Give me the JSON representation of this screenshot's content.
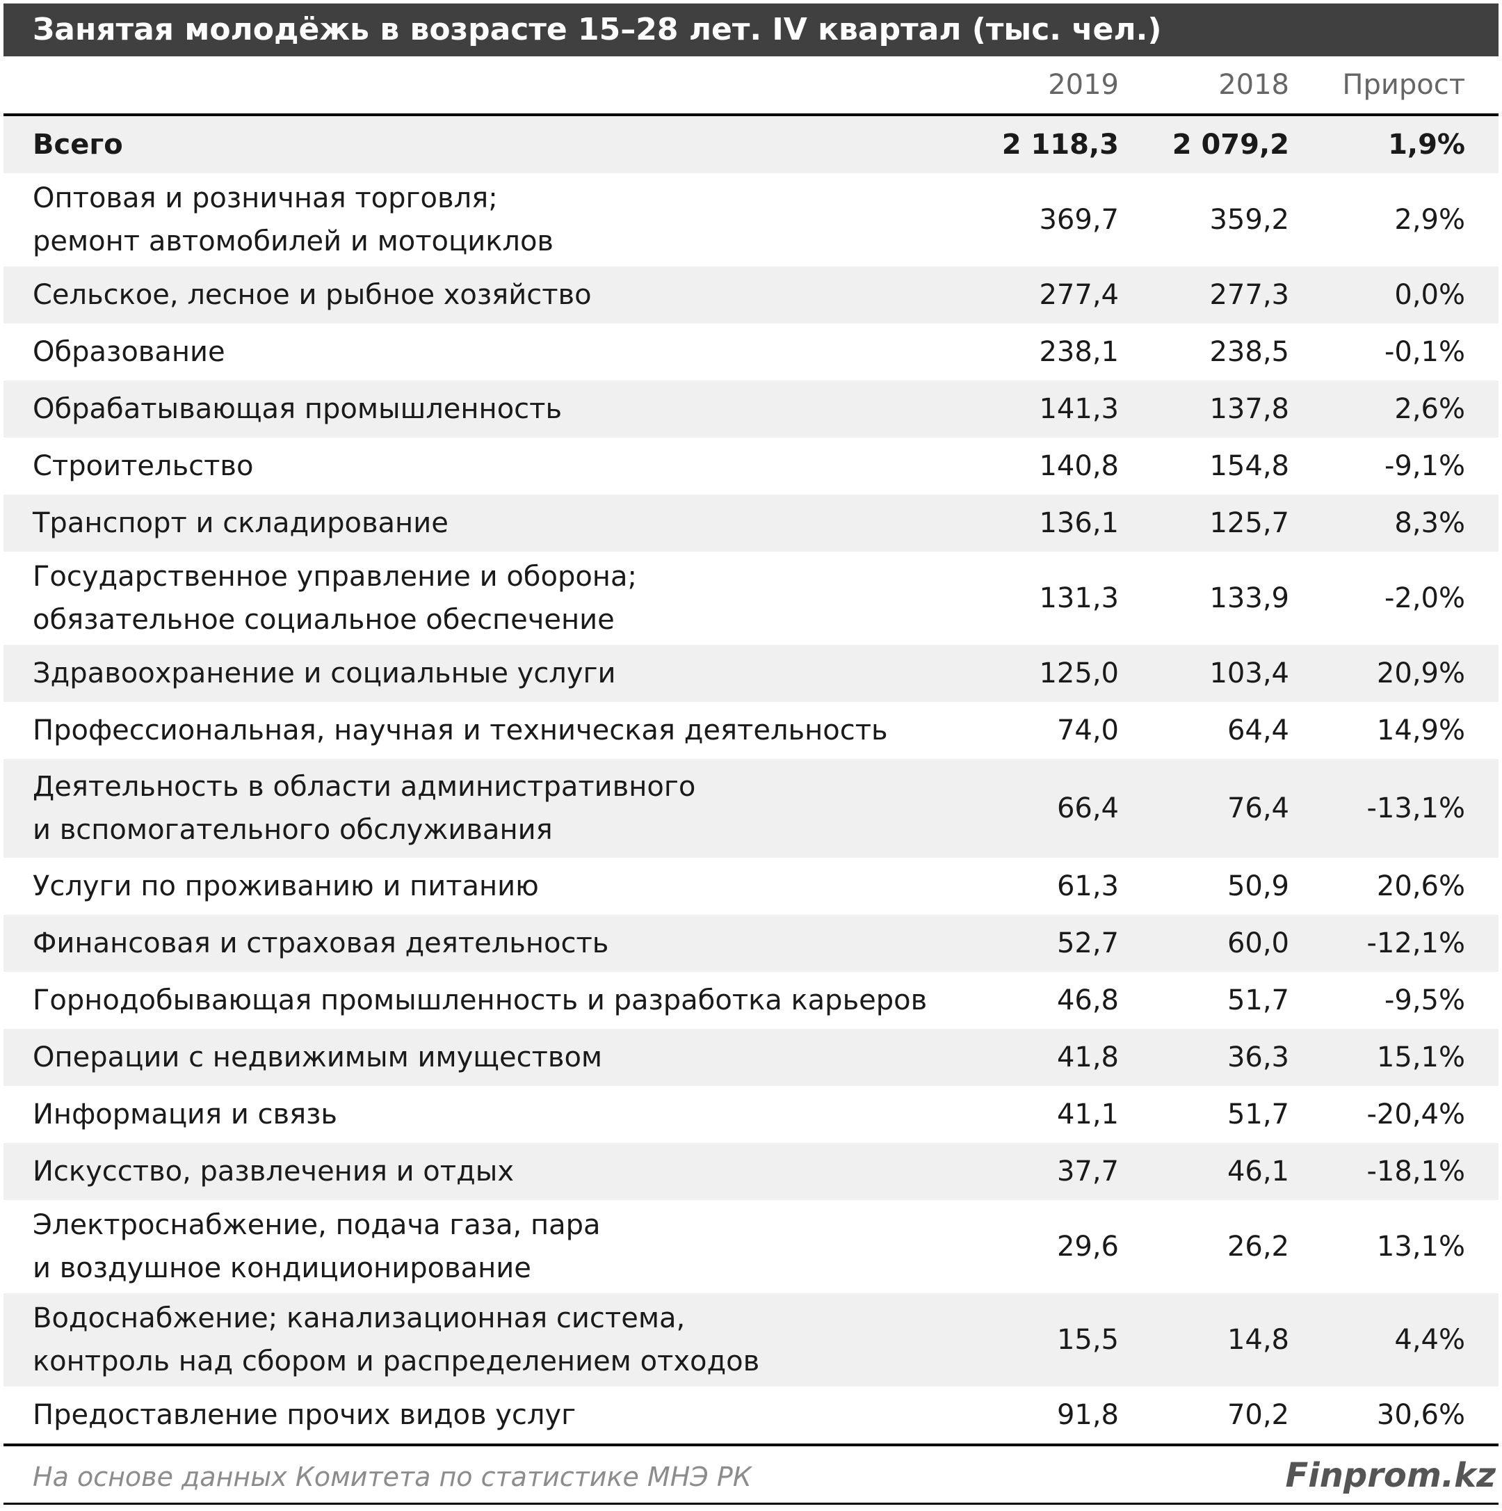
{
  "title": "Занятая молодёжь в возрасте 15–28 лет. IV квартал (тыс. чел.)",
  "columns": {
    "y2019": "2019",
    "y2018": "2018",
    "growth": "Прирост"
  },
  "rows": [
    {
      "label": "Всего",
      "v2019": "2 118,3",
      "v2018": "2 079,2",
      "growth": "1,9%"
    },
    {
      "label": "Оптовая и розничная торговля;\nремонт автомобилей и мотоциклов",
      "v2019": "369,7",
      "v2018": "359,2",
      "growth": "2,9%"
    },
    {
      "label": "Сельское, лесное и рыбное хозяйство",
      "v2019": "277,4",
      "v2018": "277,3",
      "growth": "0,0%"
    },
    {
      "label": "Образование",
      "v2019": "238,1",
      "v2018": "238,5",
      "growth": "-0,1%"
    },
    {
      "label": "Обрабатывающая промышленность",
      "v2019": "141,3",
      "v2018": "137,8",
      "growth": "2,6%"
    },
    {
      "label": "Строительство",
      "v2019": "140,8",
      "v2018": "154,8",
      "growth": "-9,1%"
    },
    {
      "label": "Транспорт и складирование",
      "v2019": "136,1",
      "v2018": "125,7",
      "growth": "8,3%"
    },
    {
      "label": "Государственное управление и оборона;\nобязательное социальное обеспечение",
      "v2019": "131,3",
      "v2018": "133,9",
      "growth": "-2,0%"
    },
    {
      "label": "Здравоохранение и социальные услуги",
      "v2019": "125,0",
      "v2018": "103,4",
      "growth": "20,9%"
    },
    {
      "label": "Профессиональная, научная и техническая деятельность",
      "v2019": "74,0",
      "v2018": "64,4",
      "growth": "14,9%"
    },
    {
      "label": "Деятельность в области административного\nи вспомогательного обслуживания",
      "v2019": "66,4",
      "v2018": "76,4",
      "growth": "-13,1%"
    },
    {
      "label": "Услуги по проживанию и питанию",
      "v2019": "61,3",
      "v2018": "50,9",
      "growth": "20,6%"
    },
    {
      "label": "Финансовая и страховая деятельность",
      "v2019": "52,7",
      "v2018": "60,0",
      "growth": "-12,1%"
    },
    {
      "label": "Горнодобывающая промышленность и разработка карьеров",
      "v2019": "46,8",
      "v2018": "51,7",
      "growth": "-9,5%"
    },
    {
      "label": "Операции с недвижимым имуществом",
      "v2019": "41,8",
      "v2018": "36,3",
      "growth": "15,1%"
    },
    {
      "label": "Информация и связь",
      "v2019": "41,1",
      "v2018": "51,7",
      "growth": "-20,4%"
    },
    {
      "label": "Искусство, развлечения и отдых",
      "v2019": "37,7",
      "v2018": "46,1",
      "growth": "-18,1%"
    },
    {
      "label": "Электроснабжение, подача газа, пара\nи воздушное кондиционирование",
      "v2019": "29,6",
      "v2018": "26,2",
      "growth": "13,1%"
    },
    {
      "label": "Водоснабжение; канализационная система,\nконтроль над сбором и распределением отходов",
      "v2019": "15,5",
      "v2018": "14,8",
      "growth": "4,4%"
    },
    {
      "label": "Предоставление прочих видов услуг",
      "v2019": "91,8",
      "v2018": "70,2",
      "growth": "30,6%"
    }
  ],
  "footer": {
    "source": "На основе данных Комитета по статистике МНЭ РК",
    "logo": "Finprom.kz"
  }
}
